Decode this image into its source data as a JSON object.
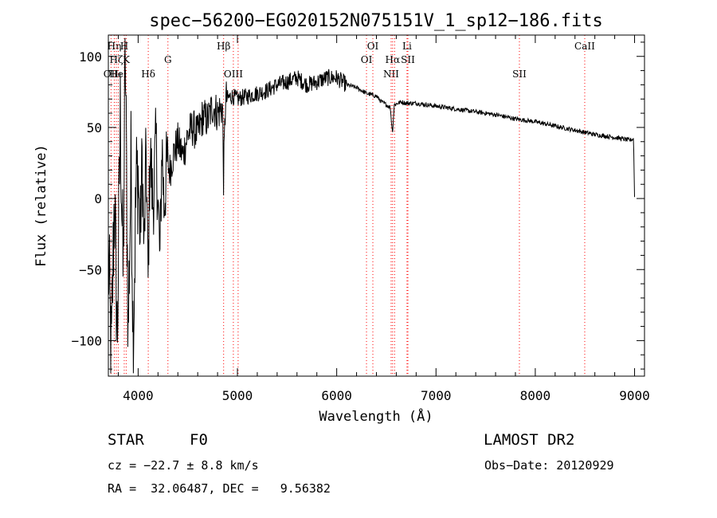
{
  "chart_data": {
    "type": "line",
    "title": "spec−56200−EG020152N075151V_1_sp12−186.fits",
    "xlabel": "Wavelength (Å)",
    "ylabel": "Flux (relative)",
    "xlim": [
      3700,
      9100
    ],
    "ylim": [
      -125,
      115
    ],
    "xticks": [
      4000,
      5000,
      6000,
      7000,
      8000,
      9000
    ],
    "yticks": [
      -100,
      -50,
      0,
      50,
      100
    ],
    "ytick_labels": [
      "−100",
      "−50",
      "0",
      "50",
      "100"
    ],
    "grid": false,
    "series": [
      {
        "color": "#000000",
        "anchors": [
          [
            3700,
            -40
          ],
          [
            3730,
            -115
          ],
          [
            3760,
            5
          ],
          [
            3790,
            -100
          ],
          [
            3820,
            60
          ],
          [
            3850,
            -60
          ],
          [
            3870,
            110
          ],
          [
            3900,
            -95
          ],
          [
            3930,
            30
          ],
          [
            3950,
            -100
          ],
          [
            3980,
            10
          ],
          [
            4000,
            20
          ],
          [
            4020,
            -30
          ],
          [
            4040,
            30
          ],
          [
            4060,
            -40
          ],
          [
            4080,
            35
          ],
          [
            4100,
            -60
          ],
          [
            4120,
            35
          ],
          [
            4150,
            -5
          ],
          [
            4180,
            40
          ],
          [
            4220,
            -45
          ],
          [
            4240,
            40
          ],
          [
            4260,
            -5
          ],
          [
            4290,
            25
          ],
          [
            4320,
            20
          ],
          [
            4350,
            30
          ],
          [
            4400,
            40
          ],
          [
            4450,
            30
          ],
          [
            4500,
            45
          ],
          [
            4550,
            50
          ],
          [
            4600,
            45
          ],
          [
            4650,
            58
          ],
          [
            4700,
            55
          ],
          [
            4750,
            65
          ],
          [
            4800,
            60
          ],
          [
            4850,
            65
          ],
          [
            4860,
            15
          ],
          [
            4880,
            70
          ],
          [
            4950,
            72
          ],
          [
            5000,
            70
          ],
          [
            5100,
            72
          ],
          [
            5200,
            74
          ],
          [
            5300,
            76
          ],
          [
            5400,
            80
          ],
          [
            5500,
            82
          ],
          [
            5600,
            85
          ],
          [
            5700,
            80
          ],
          [
            5800,
            82
          ],
          [
            5900,
            85
          ],
          [
            6000,
            85
          ],
          [
            6100,
            80
          ],
          [
            6200,
            78
          ],
          [
            6300,
            74
          ],
          [
            6400,
            72
          ],
          [
            6450,
            68
          ],
          [
            6500,
            66
          ],
          [
            6540,
            64
          ],
          [
            6562,
            46
          ],
          [
            6580,
            66
          ],
          [
            6650,
            68
          ],
          [
            6700,
            67
          ],
          [
            6800,
            67
          ],
          [
            6900,
            66
          ],
          [
            7000,
            65
          ],
          [
            7200,
            63
          ],
          [
            7400,
            61
          ],
          [
            7600,
            59
          ],
          [
            7800,
            56
          ],
          [
            8000,
            54
          ],
          [
            8200,
            51
          ],
          [
            8400,
            48
          ],
          [
            8600,
            45
          ],
          [
            8800,
            43
          ],
          [
            8950,
            41
          ],
          [
            8990,
            42
          ],
          [
            9000,
            1
          ]
        ]
      }
    ],
    "line_markers": [
      {
        "wavelength": 3727,
        "label": "OII",
        "row": 2
      },
      {
        "wavelength": 3760,
        "label": "Hη",
        "row": 0
      },
      {
        "wavelength": 3780,
        "label": "Hζ",
        "row": 1
      },
      {
        "wavelength": 3800,
        "label": "HeI",
        "row": 2
      },
      {
        "wavelength": 3860,
        "label": "H",
        "row": 0
      },
      {
        "wavelength": 3880,
        "label": "K",
        "row": 1
      },
      {
        "wavelength": 4102,
        "label": "Hδ",
        "row": 2
      },
      {
        "wavelength": 4300,
        "label": "G",
        "row": 1
      },
      {
        "wavelength": 4861,
        "label": "Hβ",
        "row": 0
      },
      {
        "wavelength": 4959,
        "label": "OIII",
        "row": 2
      },
      {
        "wavelength": 5007,
        "label": "",
        "row": 2
      },
      {
        "wavelength": 6300,
        "label": "OI",
        "row": 1
      },
      {
        "wavelength": 6364,
        "label": "OI",
        "row": 0
      },
      {
        "wavelength": 6548,
        "label": "NII",
        "row": 2
      },
      {
        "wavelength": 6563,
        "label": "Hα",
        "row": 1
      },
      {
        "wavelength": 6583,
        "label": "",
        "row": 2
      },
      {
        "wavelength": 6708,
        "label": "Li",
        "row": 0
      },
      {
        "wavelength": 6717,
        "label": "SII",
        "row": 1
      },
      {
        "wavelength": 7840,
        "label": "SII",
        "row": 2
      },
      {
        "wavelength": 8498,
        "label": "CaII",
        "row": 0
      }
    ],
    "marker_color": "#ff0000"
  },
  "info": {
    "class_label": "STAR",
    "subclass": "F0",
    "survey": "LAMOST DR2",
    "redshift": "cz = −22.7 ± 8.8 km/s",
    "obs_date": "Obs−Date: 20120929",
    "coords": "RA =  32.06487, DEC =   9.56382"
  }
}
